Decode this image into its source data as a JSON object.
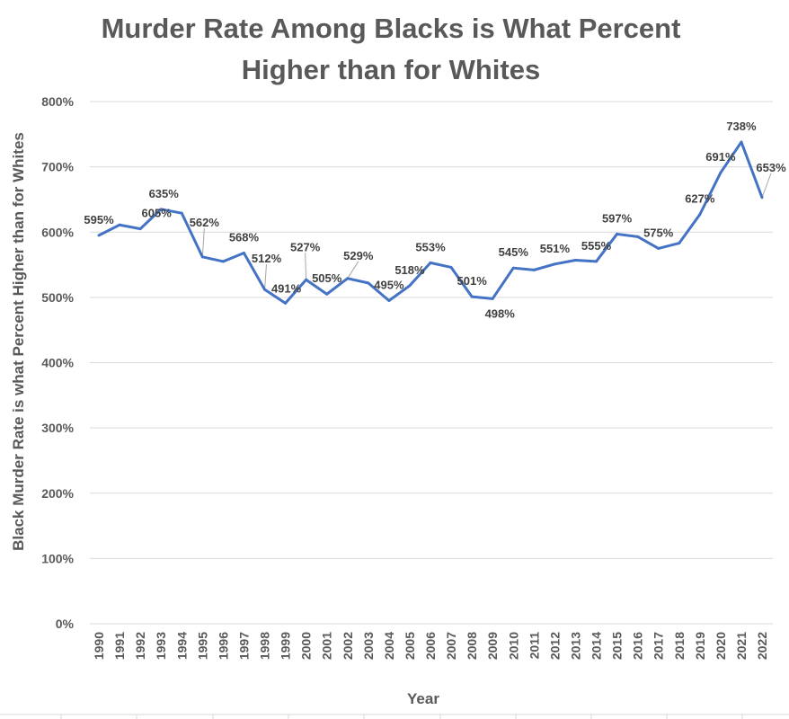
{
  "chart_data": {
    "type": "line",
    "title": "Murder Rate Among Blacks is What Percent Higher than for Whites",
    "title_lines": [
      "Murder Rate Among Blacks is What Percent",
      "Higher than for Whites"
    ],
    "xlabel": "Year",
    "ylabel": "Black Murder Rate is what Percent Higher than for Whites",
    "ylim": [
      0,
      800
    ],
    "y_ticks": [
      "0%",
      "100%",
      "200%",
      "300%",
      "400%",
      "500%",
      "600%",
      "700%",
      "800%"
    ],
    "grid": true,
    "legend": "none",
    "line_color": "#4472C4",
    "categories": [
      "1990",
      "1991",
      "1992",
      "1993",
      "1994",
      "1995",
      "1996",
      "1997",
      "1998",
      "1999",
      "2000",
      "2001",
      "2002",
      "2003",
      "2004",
      "2005",
      "2006",
      "2007",
      "2008",
      "2009",
      "2010",
      "2011",
      "2012",
      "2013",
      "2014",
      "2015",
      "2016",
      "2017",
      "2018",
      "2019",
      "2020",
      "2021",
      "2022"
    ],
    "series": [
      {
        "values": [
          595,
          611,
          605,
          635,
          629,
          562,
          555,
          568,
          512,
          491,
          527,
          505,
          529,
          522,
          495,
          518,
          553,
          546,
          501,
          498,
          545,
          542,
          551,
          557,
          555,
          597,
          593,
          575,
          583,
          627,
          691,
          738,
          653
        ],
        "data_labels": [
          "595%",
          null,
          "605%",
          "635%",
          null,
          "562%",
          null,
          "568%",
          "512%",
          "491%",
          "527%",
          "505%",
          "529%",
          null,
          "495%",
          "518%",
          "553%",
          null,
          "501%",
          "498%",
          "545%",
          null,
          "551%",
          null,
          "555%",
          "597%",
          null,
          "575%",
          null,
          "627%",
          "691%",
          "738%",
          "653%"
        ]
      }
    ]
  }
}
